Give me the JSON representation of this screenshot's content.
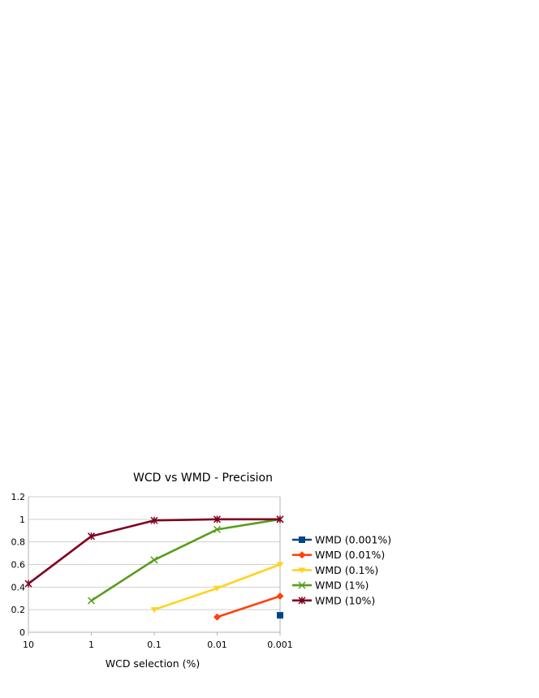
{
  "chart_data": {
    "type": "line",
    "title": "WCD vs WMD - Precision",
    "xlabel": "WCD selection (%)",
    "ylabel": "",
    "x_categories": [
      "10",
      "1",
      "0.1",
      "0.01",
      "0.001"
    ],
    "ylim": [
      0,
      1.2
    ],
    "yticks": [
      "0",
      "0.2",
      "0.4",
      "0.6",
      "0.8",
      "1",
      "1.2"
    ],
    "grid": true,
    "legend_position": "right",
    "series": [
      {
        "name": "WMD (0.001%)",
        "color": "#004586",
        "marker": "square",
        "values": [
          null,
          null,
          null,
          null,
          0.15
        ]
      },
      {
        "name": "WMD (0.01%)",
        "color": "#ff420e",
        "marker": "diamond",
        "values": [
          null,
          null,
          null,
          0.135,
          0.32
        ]
      },
      {
        "name": "WMD (0.1%)",
        "color": "#ffd320",
        "marker": "triangle-down",
        "values": [
          null,
          null,
          0.2,
          0.39,
          0.6
        ]
      },
      {
        "name": "WMD (1%)",
        "color": "#579d1c",
        "marker": "x",
        "values": [
          null,
          0.28,
          0.64,
          0.91,
          1.0
        ]
      },
      {
        "name": "WMD (10%)",
        "color": "#7e0021",
        "marker": "star",
        "values": [
          0.43,
          0.85,
          0.99,
          1.0,
          1.0
        ]
      }
    ]
  }
}
